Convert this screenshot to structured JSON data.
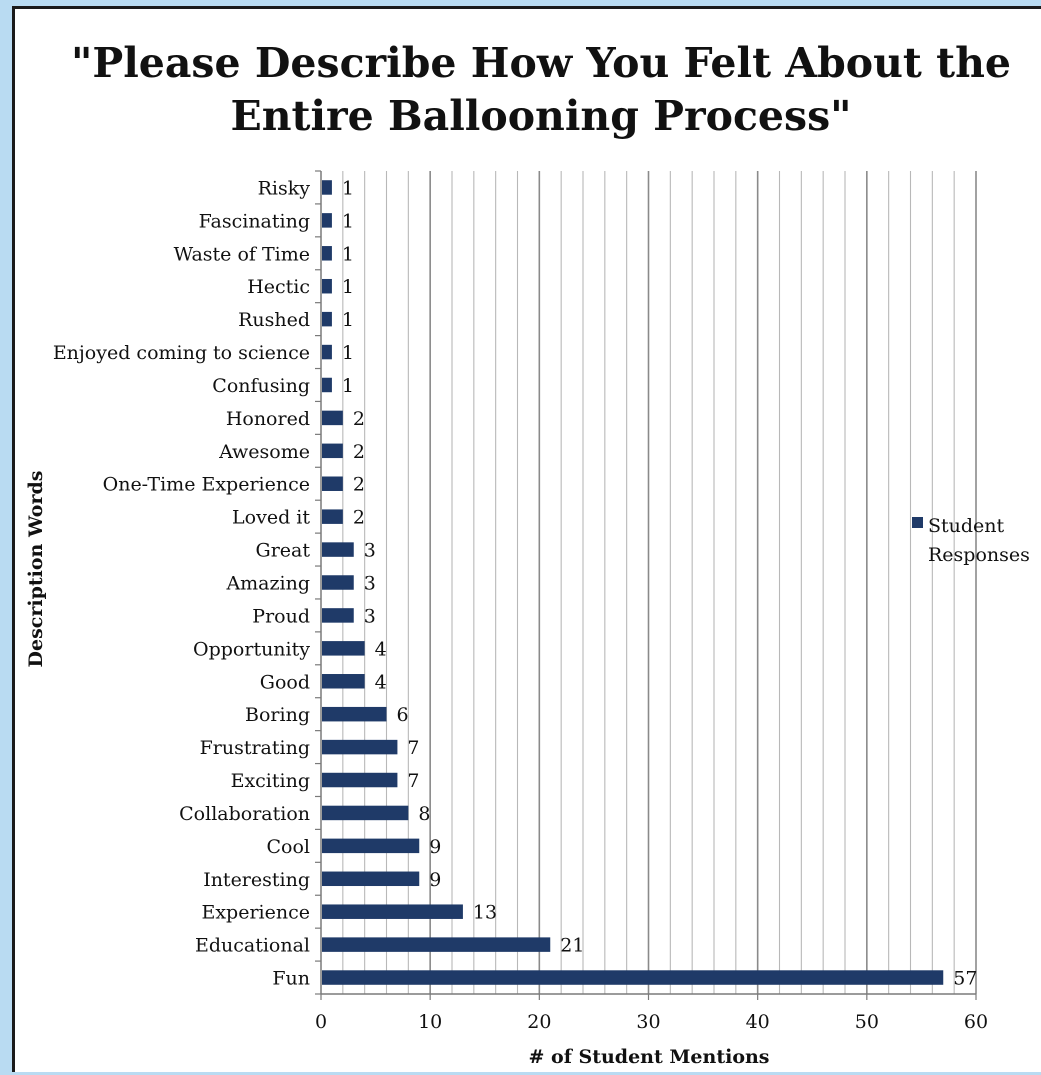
{
  "chart_data": {
    "type": "bar",
    "orientation": "horizontal",
    "title_lines": [
      "\"Please Describe How You Felt About the",
      "Entire Ballooning Process\""
    ],
    "xlabel": "# of Student Mentions",
    "ylabel": "Description Words",
    "xlim": [
      0,
      60
    ],
    "xticks": [
      0,
      10,
      20,
      30,
      40,
      50,
      60
    ],
    "grid": true,
    "legend_position": "right",
    "bar_color": "#1f3a68",
    "categories": [
      "Fun",
      "Educational",
      "Experience",
      "Interesting",
      "Cool",
      "Collaboration",
      "Exciting",
      "Frustrating",
      "Boring",
      "Good",
      "Opportunity",
      "Proud",
      "Amazing",
      "Great",
      "Loved it",
      "One-Time Experience",
      "Awesome",
      "Honored",
      "Confusing",
      "Enjoyed coming to science",
      "Rushed",
      "Hectic",
      "Waste of Time",
      "Fascinating",
      "Risky"
    ],
    "series": [
      {
        "name": "Student Responses",
        "legend_lines": [
          "Student",
          "Responses"
        ],
        "values": [
          57,
          21,
          13,
          9,
          9,
          8,
          7,
          7,
          6,
          4,
          4,
          3,
          3,
          3,
          2,
          2,
          2,
          2,
          1,
          1,
          1,
          1,
          1,
          1,
          1
        ]
      }
    ]
  }
}
